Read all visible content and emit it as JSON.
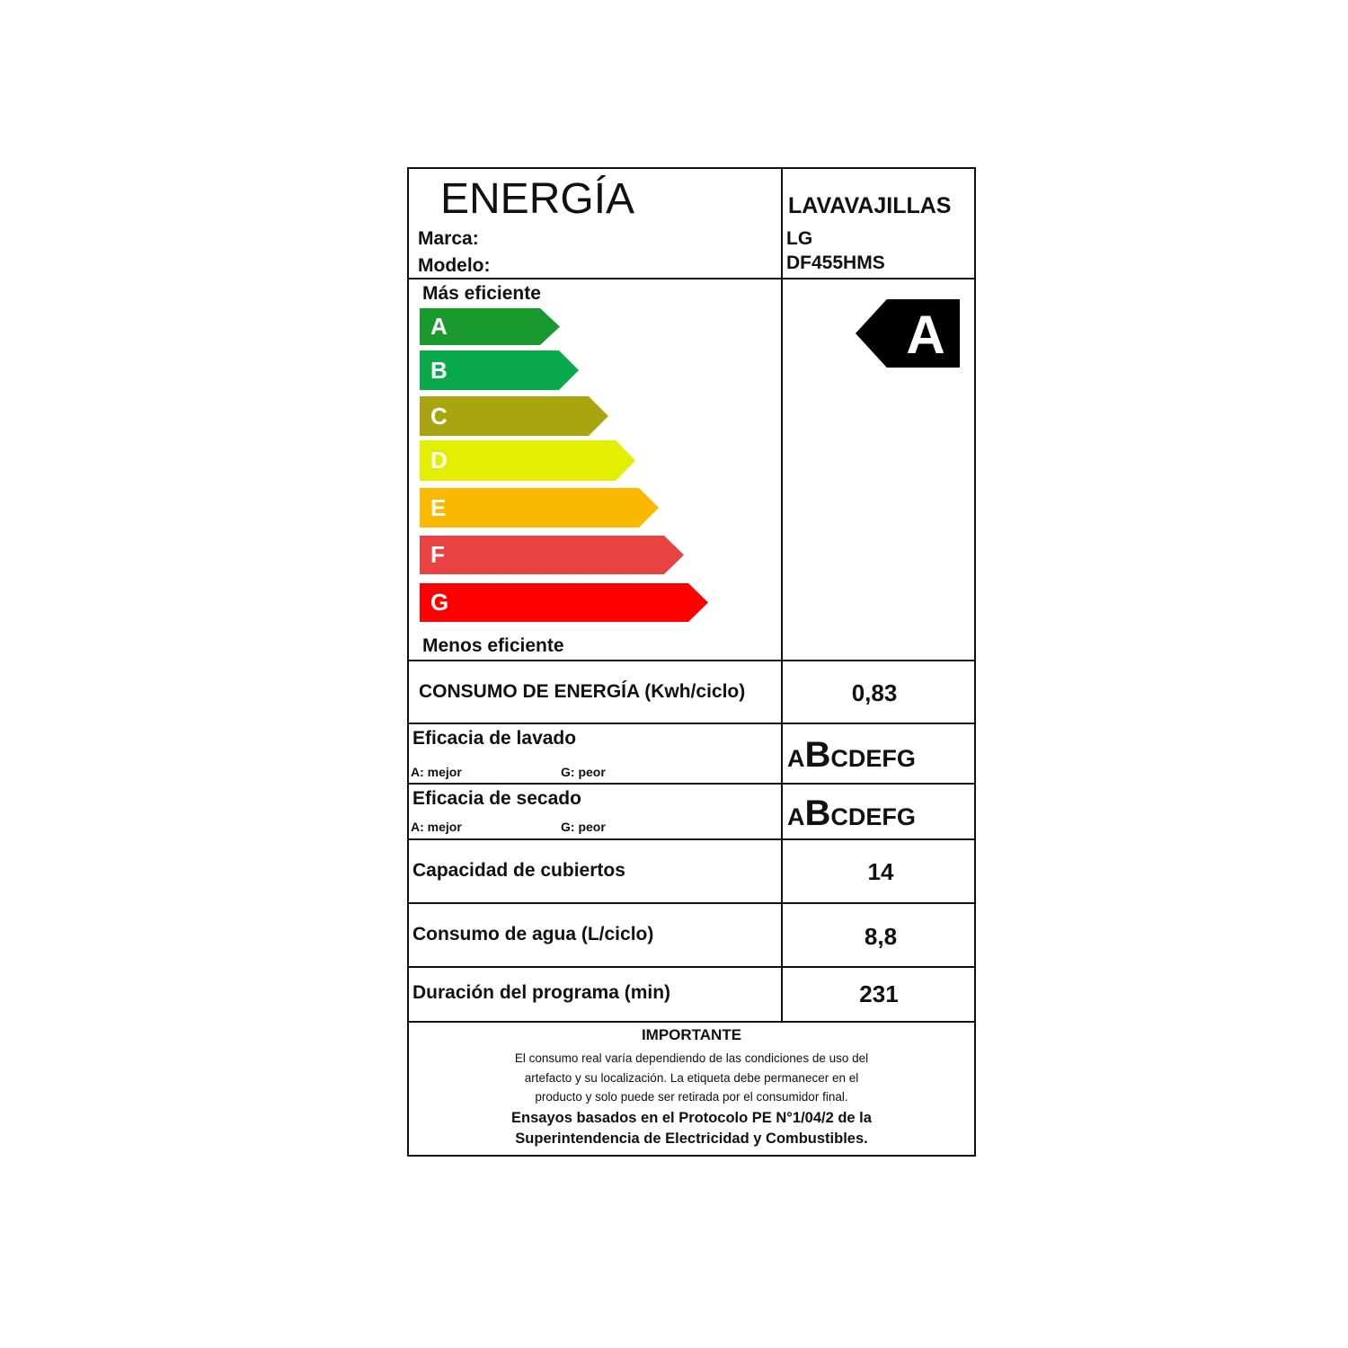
{
  "header": {
    "title": "ENERGÍA",
    "category": "LAVAVAJILLAS",
    "brand_label": "Marca:",
    "brand": "LG",
    "model_label": "Modelo:",
    "model": "DF455HMS"
  },
  "scale": {
    "top_label": "Más eficiente",
    "bottom_label": "Menos eficiente",
    "classes": [
      {
        "letter": "A",
        "color": "#1a9a2e"
      },
      {
        "letter": "B",
        "color": "#0aaa4c"
      },
      {
        "letter": "C",
        "color": "#a8a510"
      },
      {
        "letter": "D",
        "color": "#e3ee00"
      },
      {
        "letter": "E",
        "color": "#fbb800"
      },
      {
        "letter": "F",
        "color": "#e94243"
      },
      {
        "letter": "G",
        "color": "#fe0000"
      }
    ],
    "rating": "A"
  },
  "energy": {
    "label": "CONSUMO DE ENERGÍA (Kwh/ciclo)",
    "value": "0,83"
  },
  "washing": {
    "label": "Eficacia de lavado",
    "best": "A: mejor",
    "worst": "G: peor",
    "letters": [
      "A",
      "B",
      "C",
      "D",
      "E",
      "F",
      "G"
    ],
    "rating": "B"
  },
  "drying": {
    "label": "Eficacia de secado",
    "best": "A: mejor",
    "worst": "G: peor",
    "letters": [
      "A",
      "B",
      "C",
      "D",
      "E",
      "F",
      "G"
    ],
    "rating": "B"
  },
  "capacity": {
    "label": "Capacidad de cubiertos",
    "value": "14"
  },
  "water": {
    "label": "Consumo de agua (L/ciclo)",
    "value": "8,8"
  },
  "duration": {
    "label": "Duración del programa (min)",
    "value": "231"
  },
  "important": {
    "title": "IMPORTANTE",
    "lines": [
      "El consumo real varía dependiendo de las condiciones de uso del",
      "artefacto y su localización. La etiqueta debe permanecer en el",
      "producto  y solo puede ser retirada por el consumidor final."
    ],
    "protocol": [
      "Ensayos basados en el Protocolo PE N°1/04/2 de la",
      "Superintendencia de Electricidad y Combustibles."
    ]
  }
}
